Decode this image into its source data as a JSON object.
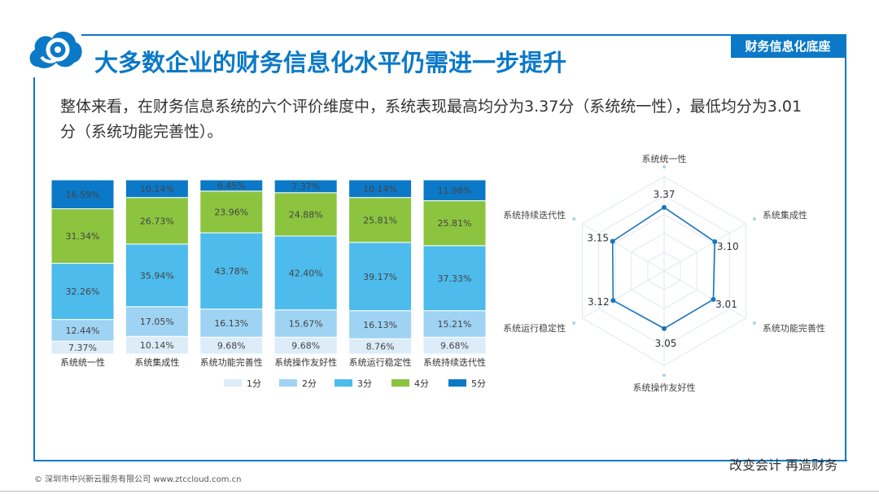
{
  "header": {
    "title": "大多数企业的财务信息化水平仍需进一步提升",
    "tag": "财务信息化底座"
  },
  "summary": "整体来看，在财务信息系统的六个评价维度中，系统表现最高均分为3.37分（系统统一性），最低均分为3.01分（系统功能完善性）。",
  "footer": {
    "copyright": "© 深圳市中兴新云服务有限公司 www.ztccloud.com.cn",
    "slogan": "改变会计  再造财务"
  },
  "colors": {
    "brand": "#0b79c7",
    "score1": "#dcedf9",
    "score2": "#9fd3f3",
    "score3": "#4dbbeb",
    "score4": "#8cc43f",
    "score5": "#0b79c7",
    "radar_line": "#1b75bb",
    "radar_grid": "#dfe8f2"
  },
  "chart_data": [
    {
      "type": "bar",
      "stacked": "percent",
      "categories": [
        "系统统一性",
        "系统集成性",
        "系统功能完善性",
        "系统操作友好性",
        "系统运行稳定性",
        "系统持续迭代性"
      ],
      "series": [
        {
          "name": "1分",
          "values": [
            7.37,
            10.14,
            9.68,
            9.68,
            8.76,
            9.68
          ],
          "labels": [
            "7.37%",
            "10.14%",
            "9.68%",
            "9.68%",
            "8.76%",
            "9.68%"
          ]
        },
        {
          "name": "2分",
          "values": [
            12.44,
            17.05,
            16.13,
            15.67,
            16.13,
            15.21
          ],
          "labels": [
            "12.44%",
            "17.05%",
            "16.13%",
            "15.67%",
            "16.13%",
            "15.21%"
          ]
        },
        {
          "name": "3分",
          "values": [
            32.26,
            35.94,
            43.78,
            42.4,
            39.17,
            37.33
          ],
          "labels": [
            "32.26%",
            "35.94%",
            "43.78%",
            "42.40%",
            "39.17%",
            "37.33%"
          ]
        },
        {
          "name": "4分",
          "values": [
            31.34,
            26.73,
            23.96,
            24.88,
            25.81,
            25.81
          ],
          "labels": [
            "31.34%",
            "26.73%",
            "23.96%",
            "24.88%",
            "25.81%",
            "25.81%"
          ]
        },
        {
          "name": "5分",
          "values": [
            16.59,
            10.14,
            6.45,
            7.37,
            10.14,
            11.98
          ],
          "labels": [
            "16.59%",
            "10.14%",
            "6.45%",
            "7.37%",
            "10.14%",
            "11.98%"
          ]
        }
      ],
      "legend_position": "bottom",
      "grid": false
    },
    {
      "type": "radar",
      "axes": [
        "系统统一性",
        "系统集成性",
        "系统功能完善性",
        "系统操作友好性",
        "系统运行稳定性",
        "系统持续迭代性"
      ],
      "values": [
        3.37,
        3.1,
        3.01,
        3.05,
        3.12,
        3.15
      ],
      "value_labels": [
        "3.37",
        "3.10",
        "3.01",
        "3.05",
        "3.12",
        "3.15"
      ],
      "range": [
        0,
        5
      ]
    }
  ]
}
